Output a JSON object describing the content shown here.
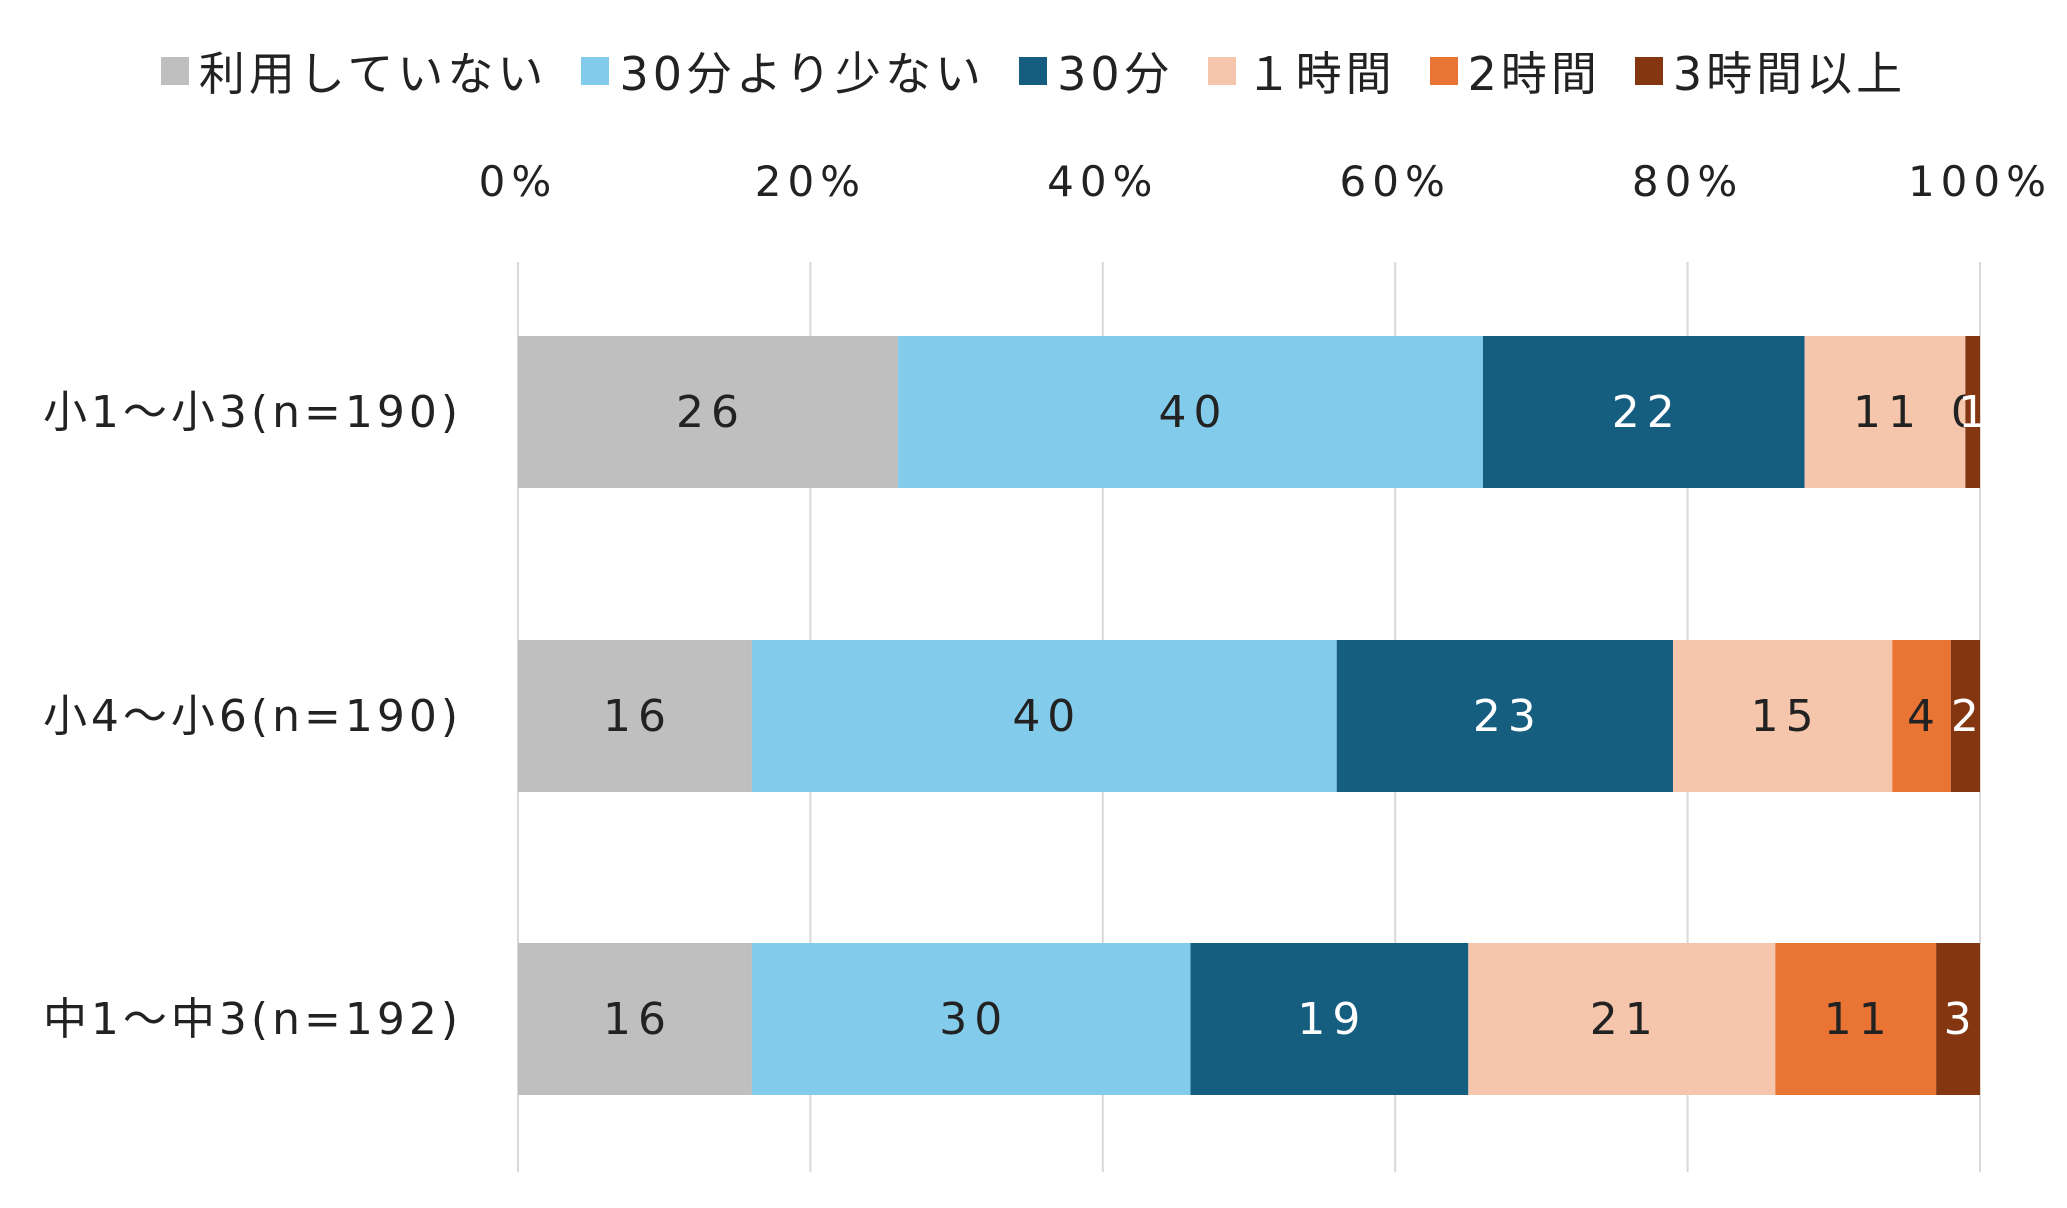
{
  "chart_data": {
    "type": "bar",
    "orientation": "horizontal",
    "stacked": "percent",
    "categories": [
      "小1～小3(n=190)",
      "小4～小6(n=190)",
      "中1～中3(n=192)"
    ],
    "series": [
      {
        "name": "利用していない",
        "values": [
          26,
          16,
          16
        ],
        "color": "#bfbfbf",
        "label_color": "#222222"
      },
      {
        "name": "30分より少ない",
        "values": [
          40,
          40,
          30
        ],
        "color": "#83cbea",
        "label_color": "#222222"
      },
      {
        "name": "30分",
        "values": [
          22,
          23,
          19
        ],
        "color": "#155e80",
        "label_color": "#ffffff"
      },
      {
        "name": "１時間",
        "values": [
          11,
          15,
          21
        ],
        "color": "#f5c6ab",
        "label_color": "#222222"
      },
      {
        "name": "2時間",
        "values": [
          0,
          4,
          11
        ],
        "color": "#ea7434",
        "label_color": "#222222"
      },
      {
        "name": "3時間以上",
        "values": [
          1,
          2,
          3
        ],
        "color": "#843610",
        "label_color": "#ffffff"
      }
    ],
    "xticks": [
      "0%",
      "20%",
      "40%",
      "60%",
      "80%",
      "100%"
    ],
    "xlim": [
      0,
      100
    ],
    "grid": true,
    "legend": "top",
    "axis_position": "top"
  }
}
